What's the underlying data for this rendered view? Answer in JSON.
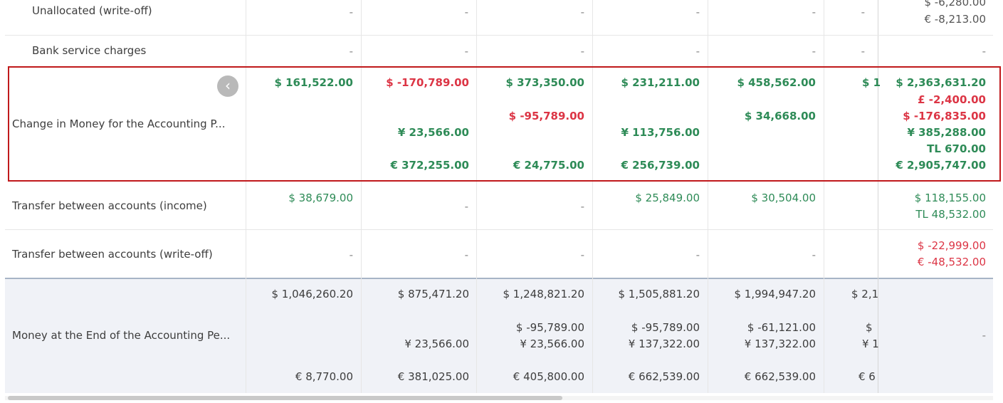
{
  "rows": {
    "unallocated": {
      "label": "Unallocated (write-off)",
      "cols": [
        "-",
        "-",
        "-",
        "-",
        "-",
        "-"
      ],
      "total": [
        "$ -6,280.00",
        "€ -8,213.00"
      ]
    },
    "bank": {
      "label": "Bank service charges",
      "cols": [
        "-",
        "-",
        "-",
        "-",
        "-",
        "-"
      ],
      "total": "-"
    },
    "change": {
      "label": "Change in Money for the Accounting P...",
      "c1": "$ 161,522.00",
      "c2_usd": "$ -170,789.00",
      "c2_jpy": "¥ 23,566.00",
      "c2_eur": "€ 372,255.00",
      "c3_usd": "$ 373,350.00",
      "c3_usd2": "$ -95,789.00",
      "c3_eur": "€ 24,775.00",
      "c4_usd": "$ 231,211.00",
      "c4_jpy": "¥ 113,756.00",
      "c4_eur": "€ 256,739.00",
      "c5_usd": "$ 458,562.00",
      "c5_usd2": "$ 34,668.00",
      "c6_usd": "$ 1",
      "total": [
        "$ 2,363,631.20",
        "£ -2,400.00",
        "$ -176,835.00",
        "¥ 385,288.00",
        "TL 670.00",
        "€ 2,905,747.00"
      ]
    },
    "transfer_income": {
      "label": "Transfer between accounts (income)",
      "c1": "$ 38,679.00",
      "c2": "-",
      "c3": "-",
      "c4": "$ 25,849.00",
      "c5": "$ 30,504.00",
      "total": [
        "$ 118,155.00",
        "TL 48,532.00"
      ]
    },
    "transfer_writeoff": {
      "label": "Transfer between accounts (write-off)",
      "cols": [
        "-",
        "-",
        "-",
        "-",
        "-"
      ],
      "total": [
        "$ -22,999.00",
        "€ -48,532.00"
      ]
    },
    "end": {
      "label": "Money at the End of the Accounting Pe...",
      "c1_usd": "$ 1,046,260.20",
      "c1_eur": "€ 8,770.00",
      "c2_usd": "$ 875,471.20",
      "c2_jpy": "¥ 23,566.00",
      "c2_eur": "€ 381,025.00",
      "c3_usd": "$ 1,248,821.20",
      "c3_usd2": "$ -95,789.00",
      "c3_jpy": "¥ 23,566.00",
      "c3_eur": "€ 405,800.00",
      "c4_usd": "$ 1,505,881.20",
      "c4_usd2": "$ -95,789.00",
      "c4_jpy": "¥ 137,322.00",
      "c4_eur": "€ 662,539.00",
      "c5_usd": "$ 1,994,947.20",
      "c5_usd2": "$ -61,121.00",
      "c5_jpy": "¥ 137,322.00",
      "c5_eur": "€ 662,539.00",
      "c6_usd": "$ 2,1",
      "c6_usd2": "$",
      "c6_jpy": "¥ 1",
      "c6_eur": "€ 6",
      "total": "-"
    }
  },
  "ui": {
    "back_icon": "chevron-left-icon",
    "back_glyph": "‹"
  },
  "colors": {
    "positive": "#2e8b57",
    "negative": "#dc3545",
    "highlight_border": "#c0191b",
    "footer_bg": "#f0f2f7"
  }
}
